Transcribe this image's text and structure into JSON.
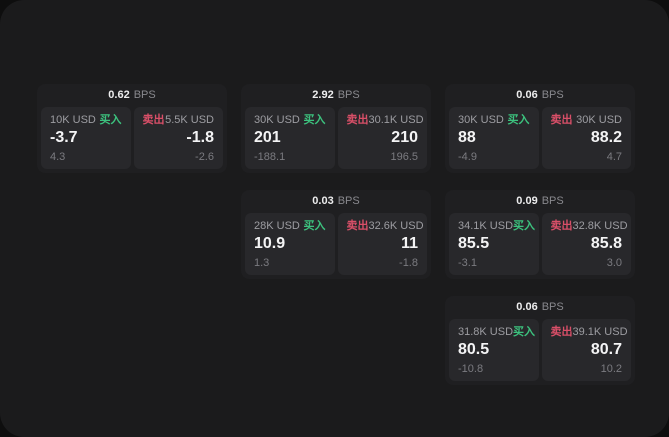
{
  "colors": {
    "buy": "#3cc27e",
    "sell": "#d94f68",
    "value": "#f4f4f5",
    "muted": "#9d9da2",
    "sub": "#7b7b80",
    "bps_label": "#89898e",
    "card_bg": "#1f1f21",
    "panel_bg": "#28282b",
    "window_bg": "#1b1b1c",
    "page_bg": "#0e0e0e"
  },
  "labels": {
    "bps_unit": "BPS",
    "buy": "买入",
    "sell": "卖出"
  },
  "cards": [
    {
      "bps": "0.62",
      "grid": {
        "col": 1,
        "row": 1
      },
      "buy": {
        "amount": "10K USD",
        "value": "-3.7",
        "sub": "4.3"
      },
      "sell": {
        "amount": "5.5K USD",
        "value": "-1.8",
        "sub": "-2.6"
      }
    },
    {
      "bps": "2.92",
      "grid": {
        "col": 2,
        "row": 1
      },
      "buy": {
        "amount": "30K USD",
        "value": "201",
        "sub": "-188.1"
      },
      "sell": {
        "amount": "30.1K USD",
        "value": "210",
        "sub": "196.5"
      }
    },
    {
      "bps": "0.06",
      "grid": {
        "col": 3,
        "row": 1
      },
      "buy": {
        "amount": "30K USD",
        "value": "88",
        "sub": "-4.9"
      },
      "sell": {
        "amount": "30K USD",
        "value": "88.2",
        "sub": "4.7"
      }
    },
    {
      "bps": "0.03",
      "grid": {
        "col": 2,
        "row": 2
      },
      "buy": {
        "amount": "28K USD",
        "value": "10.9",
        "sub": "1.3"
      },
      "sell": {
        "amount": "32.6K USD",
        "value": "11",
        "sub": "-1.8"
      }
    },
    {
      "bps": "0.09",
      "grid": {
        "col": 3,
        "row": 2
      },
      "buy": {
        "amount": "34.1K USD",
        "value": "85.5",
        "sub": "-3.1"
      },
      "sell": {
        "amount": "32.8K USD",
        "value": "85.8",
        "sub": "3.0"
      }
    },
    {
      "bps": "0.06",
      "grid": {
        "col": 3,
        "row": 3
      },
      "buy": {
        "amount": "31.8K USD",
        "value": "80.5",
        "sub": "-10.8"
      },
      "sell": {
        "amount": "39.1K USD",
        "value": "80.7",
        "sub": "10.2"
      }
    }
  ]
}
